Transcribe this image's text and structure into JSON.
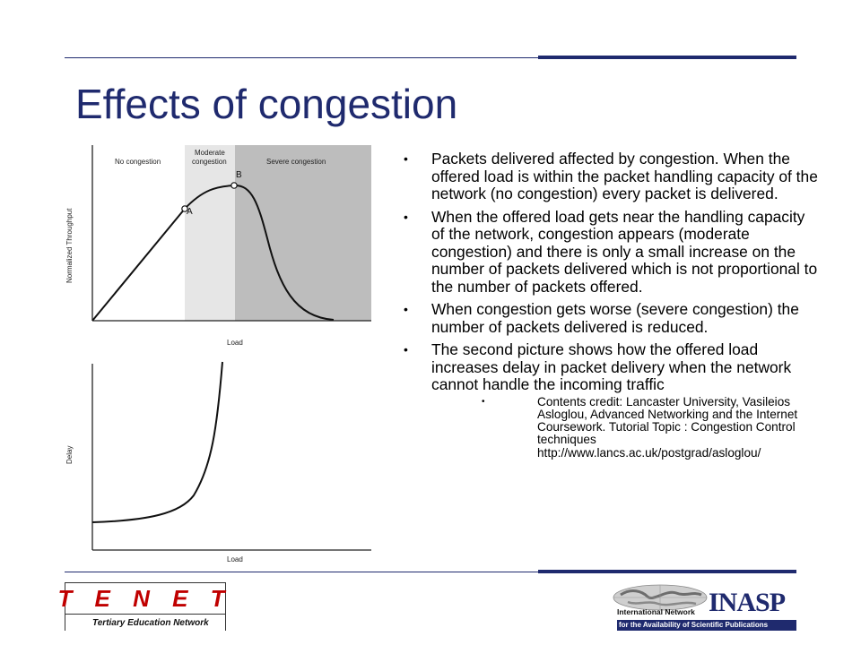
{
  "slide": {
    "title": "Effects of congestion"
  },
  "figure": {
    "throughput_chart": {
      "ylabel": "Normalized Throughput",
      "xlabel": "Load",
      "zones": [
        "No congestion",
        "Moderate",
        "congestion",
        "Severe  congestion"
      ],
      "points": [
        "A",
        "B"
      ]
    },
    "delay_chart": {
      "ylabel": "Delay",
      "xlabel": "Load"
    }
  },
  "bullets": [
    "Packets delivered affected by congestion. When the offered load is within the packet handling capacity of the network (no congestion) every packet is delivered.",
    "When the offered load gets near the handling capacity of the network, congestion appears (moderate congestion) and there is only a small increase on the number of packets delivered which is not proportional to the number of packets offered.",
    "When congestion gets worse (severe congestion) the number of packets delivered is reduced.",
    "The second picture shows how the offered load increases delay in packet delivery when the network cannot handle the incoming traffic"
  ],
  "credit": {
    "line1": "Contents credit: Lancaster University, Vasileios Asloglou, Advanced Networking and the Internet Coursework. Tutorial Topic : Congestion Control techniques",
    "line2": "http://www.lancs.ac.uk/postgrad/asloglou/"
  },
  "logos": {
    "tenet_word": "T E N E T",
    "tenet_sub": "Tertiary Education Network",
    "inasp_word": "INASP",
    "inasp_net": "International Network",
    "inasp_tag": "for the Availability of Scientific Publications"
  },
  "colors": {
    "navy": "#1f2a6e",
    "tenet_red": "#c00000",
    "moderate_zone": "#e6e6e6",
    "severe_zone": "#bdbdbd"
  }
}
